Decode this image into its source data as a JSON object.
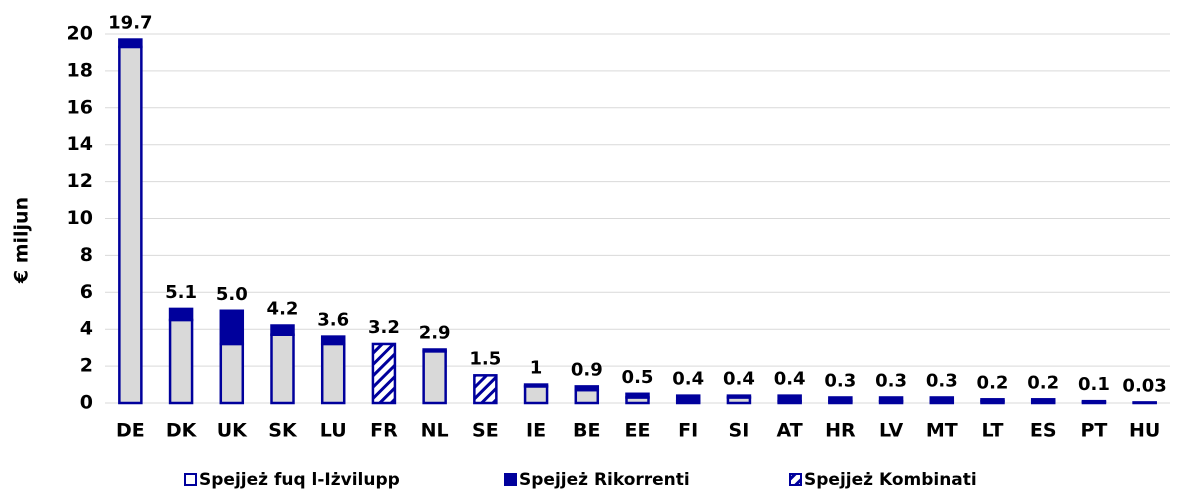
{
  "chart_data": {
    "type": "stacked_bar",
    "ylabel": "€ miljun",
    "categories": [
      "DE",
      "DK",
      "UK",
      "SK",
      "LU",
      "FR",
      "NL",
      "SE",
      "IE",
      "BE",
      "EE",
      "FI",
      "SI",
      "AT",
      "HR",
      "LV",
      "MT",
      "LT",
      "ES",
      "PT",
      "HU"
    ],
    "series": [
      {
        "name": "Spejjeż fuq l-Iżvilupp",
        "color": "#d9d9d9",
        "values": [
          19.3,
          4.5,
          3.2,
          3.7,
          3.2,
          0,
          2.8,
          0,
          0.9,
          0.7,
          0.3,
          0.1,
          0.3,
          0.1,
          0.1,
          0.1,
          0.1,
          0.1,
          0.1,
          0.05,
          0.02
        ]
      },
      {
        "name": "Spejjeż Rikorrenti",
        "color": "#00009c",
        "values": [
          0.4,
          0.6,
          1.8,
          0.5,
          0.4,
          0,
          0.1,
          0,
          0.1,
          0.2,
          0.2,
          0.3,
          0.1,
          0.3,
          0.2,
          0.2,
          0.2,
          0.1,
          0.1,
          0.05,
          0.01
        ]
      },
      {
        "name": "Spejjeż Kombinati",
        "color": "#00009c",
        "pattern": "hatch",
        "values": [
          0,
          0,
          0,
          0,
          0,
          3.2,
          0,
          1.5,
          0,
          0,
          0,
          0,
          0,
          0,
          0,
          0,
          0,
          0,
          0,
          0,
          0
        ]
      }
    ],
    "totals": [
      19.7,
      5.1,
      5.0,
      4.2,
      3.6,
      3.2,
      2.9,
      1.5,
      1,
      0.9,
      0.5,
      0.4,
      0.4,
      0.4,
      0.3,
      0.3,
      0.3,
      0.2,
      0.2,
      0.1,
      0.03
    ],
    "total_labels": [
      "19.7",
      "5.1",
      "5.0",
      "4.2",
      "3.6",
      "3.2",
      "2.9",
      "1.5",
      "1",
      "0.9",
      "0.5",
      "0.4",
      "0.4",
      "0.4",
      "0.3",
      "0.3",
      "0.3",
      "0.2",
      "0.2",
      "0.1",
      "0.03"
    ],
    "outline": "#00009c",
    "ylim": [
      0,
      20
    ],
    "yticks": [
      0,
      2,
      4,
      6,
      8,
      10,
      12,
      14,
      16,
      18,
      20
    ],
    "grid": true,
    "legend": "bottom"
  }
}
